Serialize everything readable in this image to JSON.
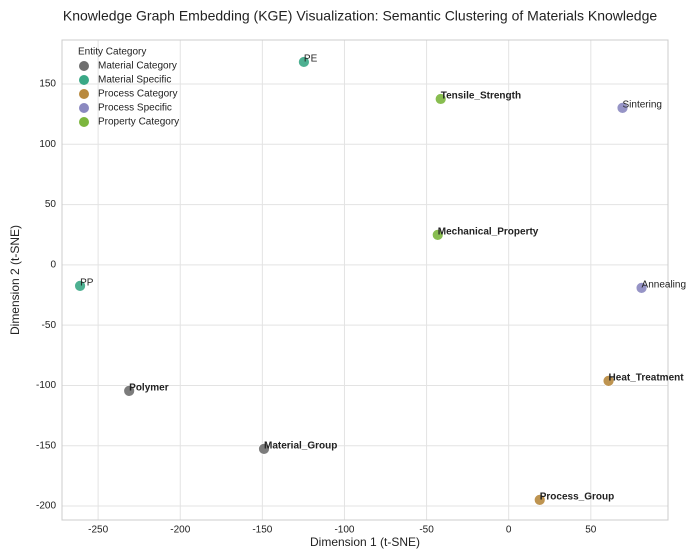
{
  "chart_data": {
    "type": "scatter",
    "title": "Knowledge Graph Embedding (KGE) Visualization: Semantic Clustering of Materials Knowledge",
    "x_label": "Dimension 1 (t-SNE)",
    "y_label": "Dimension 2 (t-SNE)",
    "legend_title": "Entity Category",
    "legend": "upper left",
    "grid": true,
    "xlim": [
      -272,
      97
    ],
    "ylim": [
      -211.6,
      186.5
    ],
    "xticks": [
      -250,
      -200,
      -150,
      -100,
      -50,
      0,
      50
    ],
    "yticks": [
      -200,
      -150,
      -100,
      -50,
      0,
      50,
      100,
      150
    ],
    "series": [
      {
        "name": "Material Category",
        "color": "#6e6e6e",
        "bold_labels": true,
        "labels": [
          "Polymer",
          "Material_Group"
        ],
        "x": [
          -231.1,
          -149
        ],
        "y": [
          -104.5,
          -152.6
        ]
      },
      {
        "name": "Material Specific",
        "color": "#3aa886",
        "bold_labels": false,
        "labels": [
          "PE",
          "PP"
        ],
        "x": [
          -124.7,
          -261
        ],
        "y": [
          168.3,
          -17.4
        ]
      },
      {
        "name": "Process Category",
        "color": "#b8893e",
        "bold_labels": true,
        "labels": [
          "Heat_Treatment",
          "Process_Group"
        ],
        "x": [
          60.8,
          18.9
        ],
        "y": [
          -96.2,
          -194.9
        ]
      },
      {
        "name": "Process Specific",
        "color": "#8b89c0",
        "bold_labels": false,
        "labels": [
          "Sintering",
          "Annealing"
        ],
        "x": [
          69.3,
          80.9
        ],
        "y": [
          130.2,
          -19.1
        ]
      },
      {
        "name": "Property Category",
        "color": "#7cb63e",
        "bold_labels": true,
        "labels": [
          "Tensile_Strength",
          "Mechanical_Property"
        ],
        "x": [
          -41.4,
          -43.2
        ],
        "y": [
          137.6,
          24.9
        ]
      }
    ]
  }
}
